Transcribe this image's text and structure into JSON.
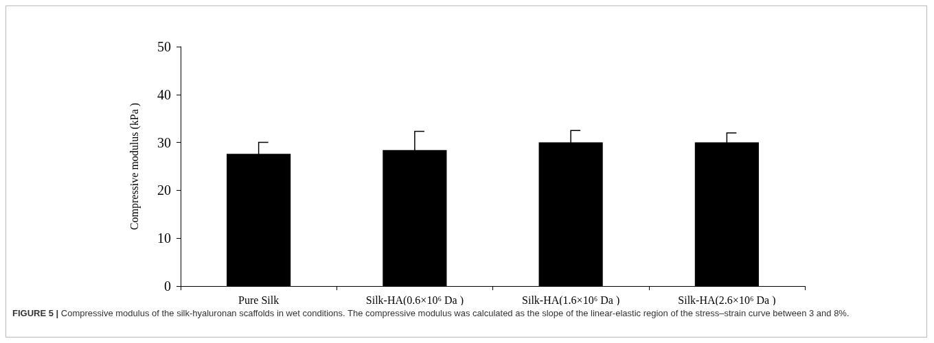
{
  "chart_data": {
    "type": "bar",
    "ylabel": "Compressive modulus (kPa )",
    "categories": [
      "Pure Silk",
      "Silk-HA(0.6×10⁶ Da )",
      "Silk-HA(1.6×10⁶ Da )",
      "Silk-HA(2.6×10⁶ Da )"
    ],
    "values": [
      27.6,
      28.4,
      30.0,
      30.0
    ],
    "errors": [
      2.4,
      3.9,
      2.5,
      2.0
    ],
    "color": "#000000",
    "ylim": [
      0,
      50
    ],
    "yticks": [
      0,
      10,
      20,
      30,
      40,
      50
    ],
    "grid": false,
    "annotations": [
      "FIGURE 5 | Compressive modulus of the silk-hyaluronan scaffolds in wet conditions. The compressive modulus was calculated as the slope of the linear-elastic region of the stress–strain curve between 3 and 8%."
    ]
  }
}
